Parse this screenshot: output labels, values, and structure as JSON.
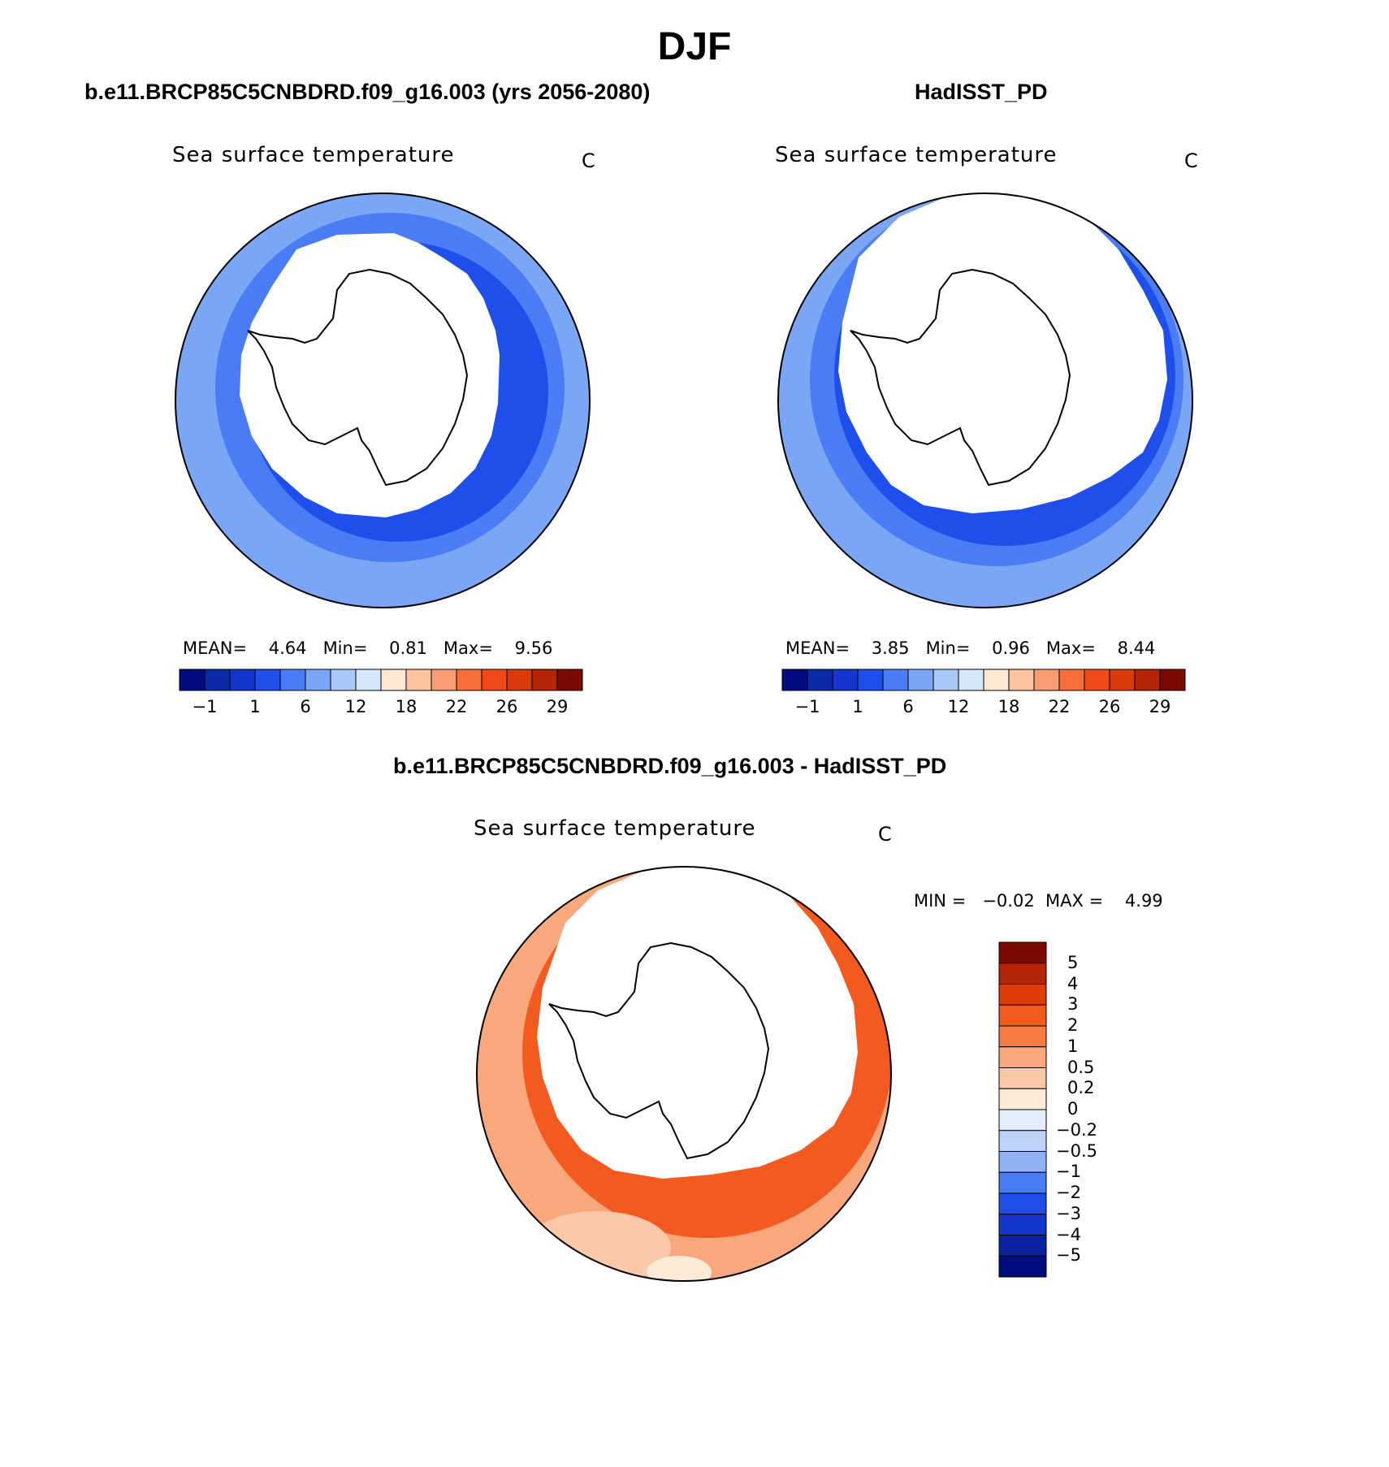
{
  "title": "DJF",
  "panels": [
    {
      "case_title": "b.e11.BRCP85C5CNBDRD.f09_g16.003 (yrs 2056-2080)",
      "variable_label": "Sea surface temperature",
      "units": "C",
      "stats": {
        "mean_label": "MEAN=",
        "mean": "4.64",
        "min_label": "Min=",
        "min": "0.81",
        "max_label": "Max=",
        "max": "9.56"
      }
    },
    {
      "case_title": "HadISST_PD",
      "variable_label": "Sea surface temperature",
      "units": "C",
      "stats": {
        "mean_label": "MEAN=",
        "mean": "3.85",
        "min_label": "Min=",
        "min": "0.96",
        "max_label": "Max=",
        "max": "8.44"
      }
    }
  ],
  "abs_colorbar": {
    "colors": [
      "#000c80",
      "#0a2aa8",
      "#1436cc",
      "#1f4fea",
      "#4a7cf5",
      "#7aa6f5",
      "#a9c8f7",
      "#d7e7fa",
      "#fde6d2",
      "#fbc3a0",
      "#f89c72",
      "#f66e3c",
      "#f04a17",
      "#d93a0a",
      "#b32505",
      "#7d0a02"
    ],
    "tick_labels": [
      "−1",
      "1",
      "6",
      "12",
      "18",
      "22",
      "26",
      "29"
    ]
  },
  "diff_panel": {
    "case_title": "b.e11.BRCP85C5CNBDRD.f09_g16.003 - HadISST_PD",
    "variable_label": "Sea surface temperature",
    "units": "C",
    "stats": {
      "min_label": "MIN =",
      "min": "−0.02",
      "max_label": "MAX =",
      "max": "4.99"
    },
    "colorbar": {
      "colors": [
        "#7d0a02",
        "#b32505",
        "#e03a08",
        "#f25a20",
        "#f67a44",
        "#f9a77c",
        "#fbc8a8",
        "#fdebd8",
        "#e2ecfb",
        "#bdd3f7",
        "#8fb2f3",
        "#4a7cf5",
        "#1f4fea",
        "#1436cc",
        "#0a22a0",
        "#000c80"
      ],
      "tick_labels": [
        "5",
        "4",
        "3",
        "2",
        "1",
        "0.5",
        "0.2",
        "0",
        "−0.2",
        "−0.5",
        "−1",
        "−2",
        "−3",
        "−4",
        "−5"
      ]
    }
  },
  "colors": {
    "land": "#ffffff",
    "coast": "#000000",
    "ice": "#ffffff"
  }
}
